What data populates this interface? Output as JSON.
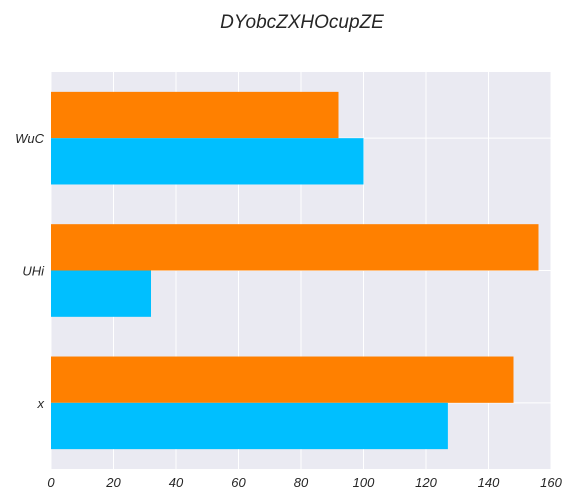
{
  "chart_data": {
    "type": "bar",
    "orientation": "horizontal",
    "title": "DYobcZXHOcupZE",
    "xlabel": "",
    "ylabel": "",
    "categories": [
      "WuC",
      "UHi",
      "x"
    ],
    "series": [
      {
        "color": "#00bfff",
        "values": [
          100,
          32,
          127
        ]
      },
      {
        "color": "#ff8000",
        "values": [
          92,
          156,
          148
        ]
      }
    ],
    "xlim": [
      0,
      160
    ],
    "xticks": [
      0,
      20,
      40,
      60,
      80,
      100,
      120,
      140,
      160
    ],
    "grid": true,
    "legend": "none",
    "plot_background": "#eaeaf2",
    "grid_color": "#ffffff"
  }
}
